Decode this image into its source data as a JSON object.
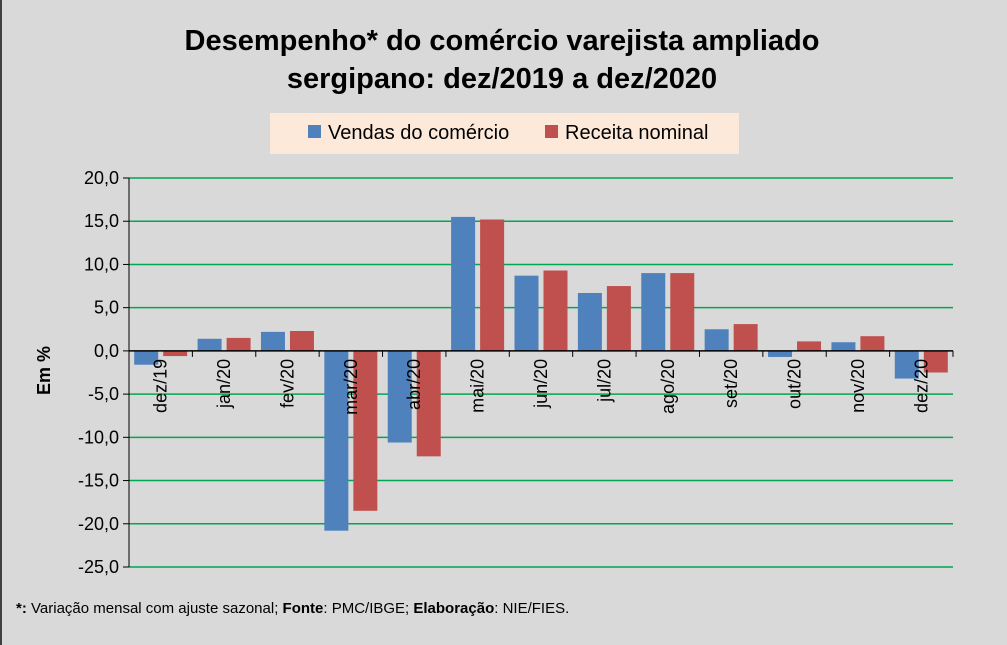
{
  "chart_data": {
    "type": "bar",
    "title_line1": "Desempenho* do comércio varejista ampliado",
    "title_line2": "sergipano: dez/2019 a dez/2020",
    "ylabel": "Em %",
    "xlabel": "",
    "ylim": [
      -25,
      20
    ],
    "ytick_step": 5,
    "ytick_labels": [
      "20,0",
      "15,0",
      "10,0",
      "5,0",
      "0,0",
      "-5,0",
      "-10,0",
      "-15,0",
      "-20,0",
      "-25,0"
    ],
    "grid": true,
    "legend_position": "top-center",
    "categories": [
      "dez/19",
      "jan/20",
      "fev/20",
      "mar/20",
      "abr/20",
      "mai/20",
      "jun/20",
      "jul/20",
      "ago/20",
      "set/20",
      "out/20",
      "nov/20",
      "dez/20"
    ],
    "series": [
      {
        "name": "Vendas do comércio",
        "color": "#4f81bd",
        "values": [
          -1.6,
          1.4,
          2.2,
          -20.8,
          -10.6,
          15.5,
          8.7,
          6.7,
          9.0,
          2.5,
          -0.7,
          1.0,
          -3.2
        ]
      },
      {
        "name": "Receita nominal",
        "color": "#c0504d",
        "values": [
          -0.6,
          1.5,
          2.3,
          -18.5,
          -12.2,
          15.2,
          9.3,
          7.5,
          9.0,
          3.1,
          1.1,
          1.7,
          -2.5
        ]
      }
    ]
  },
  "colors": {
    "background": "#d9d9d9",
    "gridline": "#00a651",
    "legend_bg": "#fde9d9",
    "axis": "#000000"
  },
  "footnote": {
    "marker": "*:",
    "text1": " Variação mensal com ajuste sazonal; ",
    "fonte_label": "Fonte",
    "fonte_value": ": PMC/IBGE; ",
    "elab_label": "Elaboração",
    "elab_value": ": NIE/FIES."
  }
}
